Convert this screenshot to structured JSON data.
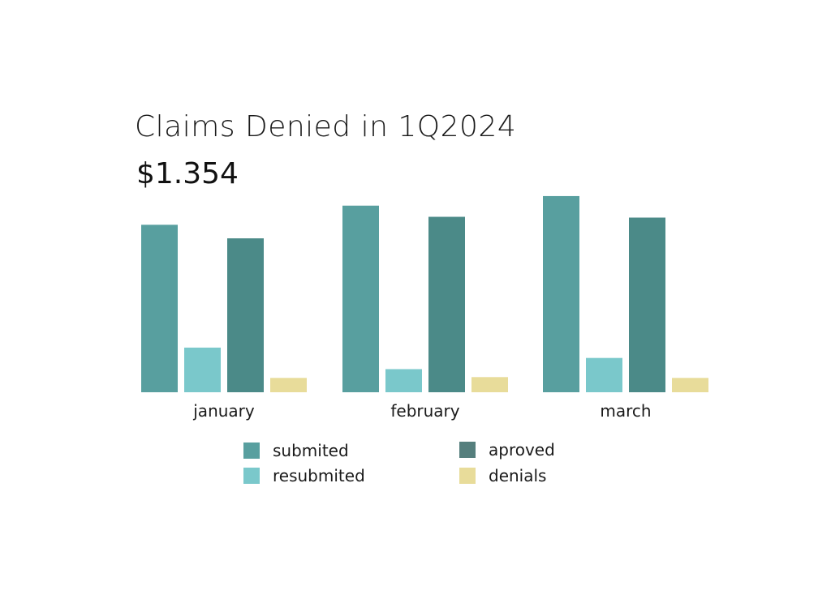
{
  "chart_data": {
    "type": "bar",
    "title": "Claims Denied in 1Q2024",
    "total_label": "$1.354",
    "categories": [
      "january",
      "february",
      "march"
    ],
    "series": [
      {
        "name": "submited",
        "values": [
          210,
          234,
          246
        ],
        "color": "#589f9f"
      },
      {
        "name": "resubmited",
        "values": [
          56,
          29,
          43
        ],
        "color": "#7ac8cb"
      },
      {
        "name": "aproved",
        "values": [
          193,
          220,
          219
        ],
        "color": "#4b8a88"
      },
      {
        "name": "denials",
        "values": [
          18,
          19,
          18
        ],
        "color": "#e8dc9a"
      }
    ],
    "legend_colors": [
      "#589f9f",
      "#7ac8cb",
      "#557f7d",
      "#e8dc9a"
    ],
    "ylim": [
      0,
      250
    ],
    "grid": false,
    "legend_position": "bottom"
  }
}
